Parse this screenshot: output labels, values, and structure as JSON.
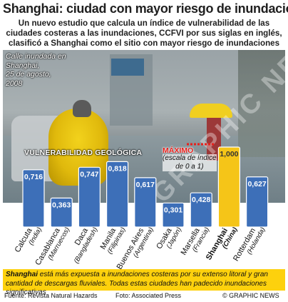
{
  "header": {
    "title": "Shanghai: ciudad con mayor riesgo de inundación",
    "subtitle": "Un nuevo estudio que calcula un índice de vulnerabilidad de las ciudades costeras a las inundaciones, CCFVI por sus siglas en inglés, clasificó a Shanghai como el sitio con mayor riesgo de inundaciones graves"
  },
  "photo": {
    "caption_line1": "Calle inundada en",
    "caption_line2": "Shanghai,",
    "caption_line3": "25 de agosto,",
    "caption_line4": "2008"
  },
  "watermark": "© GRAPHIC NEWS",
  "chart_data": {
    "type": "bar",
    "label": "VULNERABILIDAD GEOLÓGICA",
    "max_label": "MÁXIMO",
    "max_note_line1": "(escala de índice",
    "max_note_line2": "de 0 a 1)",
    "ylim": [
      0,
      1
    ],
    "categories": [
      {
        "city": "Calcuta",
        "country": "(India)",
        "value": 0.716,
        "label": "0,716",
        "highlight": false
      },
      {
        "city": "Casablanca",
        "country": "(Marruecos)",
        "value": 0.363,
        "label": "0,363",
        "highlight": false
      },
      {
        "city": "Daca",
        "country": "(Bangladesh)",
        "value": 0.747,
        "label": "0,747",
        "highlight": false
      },
      {
        "city": "Manila",
        "country": "(Filipinas)",
        "value": 0.818,
        "label": "0,818",
        "highlight": false
      },
      {
        "city": "Buenos Aires",
        "country": "(Argentina)",
        "value": 0.617,
        "label": "0,617",
        "highlight": false
      },
      {
        "city": "Osaka",
        "country": "(Japón)",
        "value": 0.301,
        "label": "0,301",
        "highlight": false
      },
      {
        "city": "Marsella",
        "country": "(Francia)",
        "value": 0.428,
        "label": "0,428",
        "highlight": false
      },
      {
        "city": "Shanghai",
        "country": "(China)",
        "value": 1.0,
        "label": "1,000",
        "highlight": true
      },
      {
        "city": "Rotterdam",
        "country": "(Holanda)",
        "value": 0.627,
        "label": "0,627",
        "highlight": false
      }
    ],
    "colors": {
      "bar": "#3d6fb8",
      "bar_highlight": "#f5c518",
      "max_line": "#e8201c"
    }
  },
  "note": {
    "bold": "Shanghai",
    "text": " está más expuesta a inundaciones costeras por su extenso litoral y gran cantidad de descargas fluviales. Todas estas ciudades han padecido inundaciones significativas"
  },
  "footer": {
    "source": "Fuente: Revista Natural Hazards",
    "photo": "Foto: Associated Press",
    "credit": "© GRAPHIC NEWS"
  }
}
